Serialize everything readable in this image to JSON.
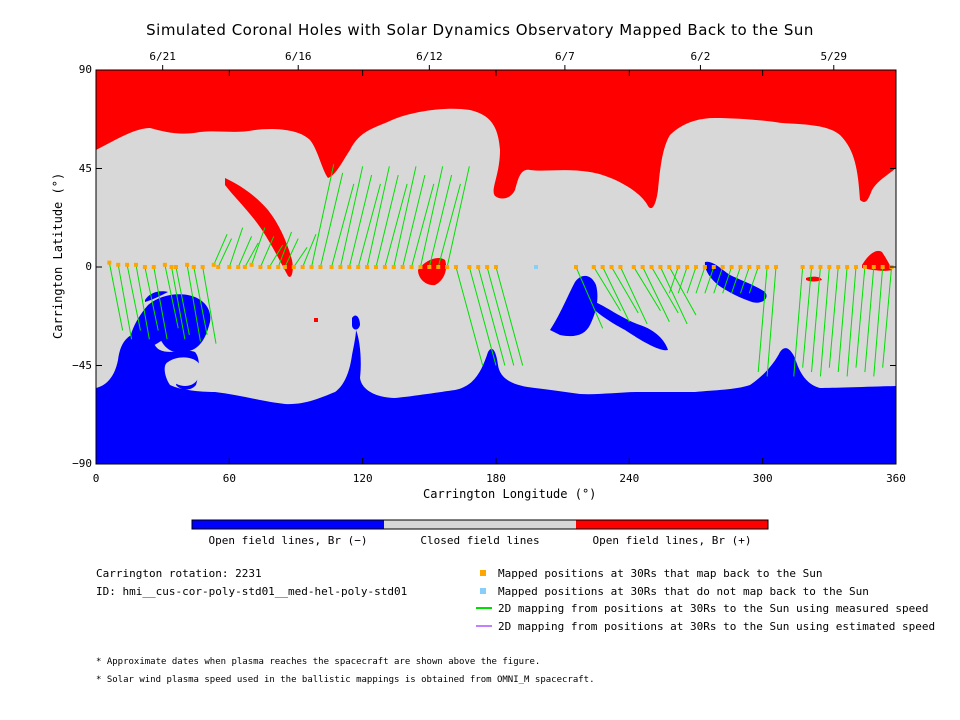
{
  "chart_data": {
    "type": "heatmap",
    "title": "Simulated Coronal Holes with Solar Dynamics Observatory Mapped Back to the Sun",
    "xlabel": "Carrington Longitude (°)",
    "ylabel": "Carrington Latitude (°)",
    "xlim": [
      0,
      360
    ],
    "ylim": [
      -90,
      90
    ],
    "x_ticks": [
      0,
      60,
      120,
      180,
      240,
      300,
      360
    ],
    "y_ticks": [
      -90,
      -45,
      0,
      45,
      90
    ],
    "x_tick_labels": [
      "0",
      "60",
      "120",
      "180",
      "240",
      "300",
      "360"
    ],
    "y_tick_labels": [
      "−90",
      "−45",
      "0",
      "45",
      "90"
    ],
    "top_dates": [
      {
        "label": "6/21",
        "lon": 30
      },
      {
        "label": "6/16",
        "lon": 91
      },
      {
        "label": "6/12",
        "lon": 150
      },
      {
        "label": "6/7",
        "lon": 211
      },
      {
        "label": "6/2",
        "lon": 272
      },
      {
        "label": "5/29",
        "lon": 332
      }
    ],
    "colorbar": [
      {
        "label": "Open field lines, Br (−)",
        "color": "#0000ff"
      },
      {
        "label": "Closed field lines",
        "color": "#d8d8d8"
      },
      {
        "label": "Open field lines, Br (+)",
        "color": "#ff0000"
      }
    ],
    "mapped_back_lon": [
      6,
      10,
      14,
      18,
      22,
      26,
      31,
      34,
      36,
      41,
      44,
      48,
      53,
      55,
      60,
      64,
      67,
      70,
      74,
      78,
      82,
      85,
      89,
      93,
      97,
      101,
      106,
      110,
      114,
      118,
      122,
      126,
      130,
      134,
      138,
      142,
      146,
      150,
      154,
      158,
      162,
      168,
      172,
      176,
      180,
      216,
      224,
      228,
      232,
      236,
      242,
      246,
      250,
      254,
      258,
      262,
      266,
      270,
      274,
      278,
      282,
      286,
      290,
      294,
      298,
      302,
      306,
      318,
      322,
      326,
      330,
      334,
      338,
      342,
      346,
      350,
      354,
      358
    ],
    "mapped_back_lat": [
      2,
      1,
      1,
      1,
      0,
      0,
      1,
      0,
      0,
      1,
      0,
      0,
      1,
      0,
      0,
      0,
      0,
      1,
      0,
      0,
      0,
      0,
      0,
      0,
      0,
      0,
      0,
      0,
      0,
      0,
      0,
      0,
      0,
      0,
      0,
      0,
      0,
      0,
      0,
      0,
      0,
      0,
      0,
      0,
      0,
      0,
      0,
      0,
      0,
      0,
      0,
      0,
      0,
      0,
      0,
      0,
      0,
      0,
      0,
      0,
      0,
      0,
      0,
      0,
      0,
      0,
      0,
      0,
      0,
      0,
      0,
      0,
      0,
      0,
      0,
      0,
      0,
      0
    ],
    "not_mapped_lon": [
      198
    ],
    "not_mapped_lat": [
      0
    ]
  },
  "info": {
    "rotation": "Carrington rotation: 2231",
    "id": "ID: hmi__cus-cor-poly-std01__med-hel-poly-std01"
  },
  "legend": {
    "mapped": "Mapped positions at 30Rs that map back to the Sun",
    "not_mapped": "Mapped positions at 30Rs that do not map back to the Sun",
    "measured": "2D mapping from positions at 30Rs to the Sun using measured speed",
    "estimated": "2D mapping from positions at 30Rs to the Sun using estimated speed",
    "colors": {
      "mapped": "#ffa500",
      "not_mapped": "#87cefa",
      "measured": "#00e000",
      "estimated": "#c080ff"
    }
  },
  "notes": [
    "* Approximate dates when plasma reaches the spacecraft are shown above the figure.",
    "* Solar wind plasma speed used in the ballistic mappings is obtained from OMNI_M spacecraft."
  ]
}
